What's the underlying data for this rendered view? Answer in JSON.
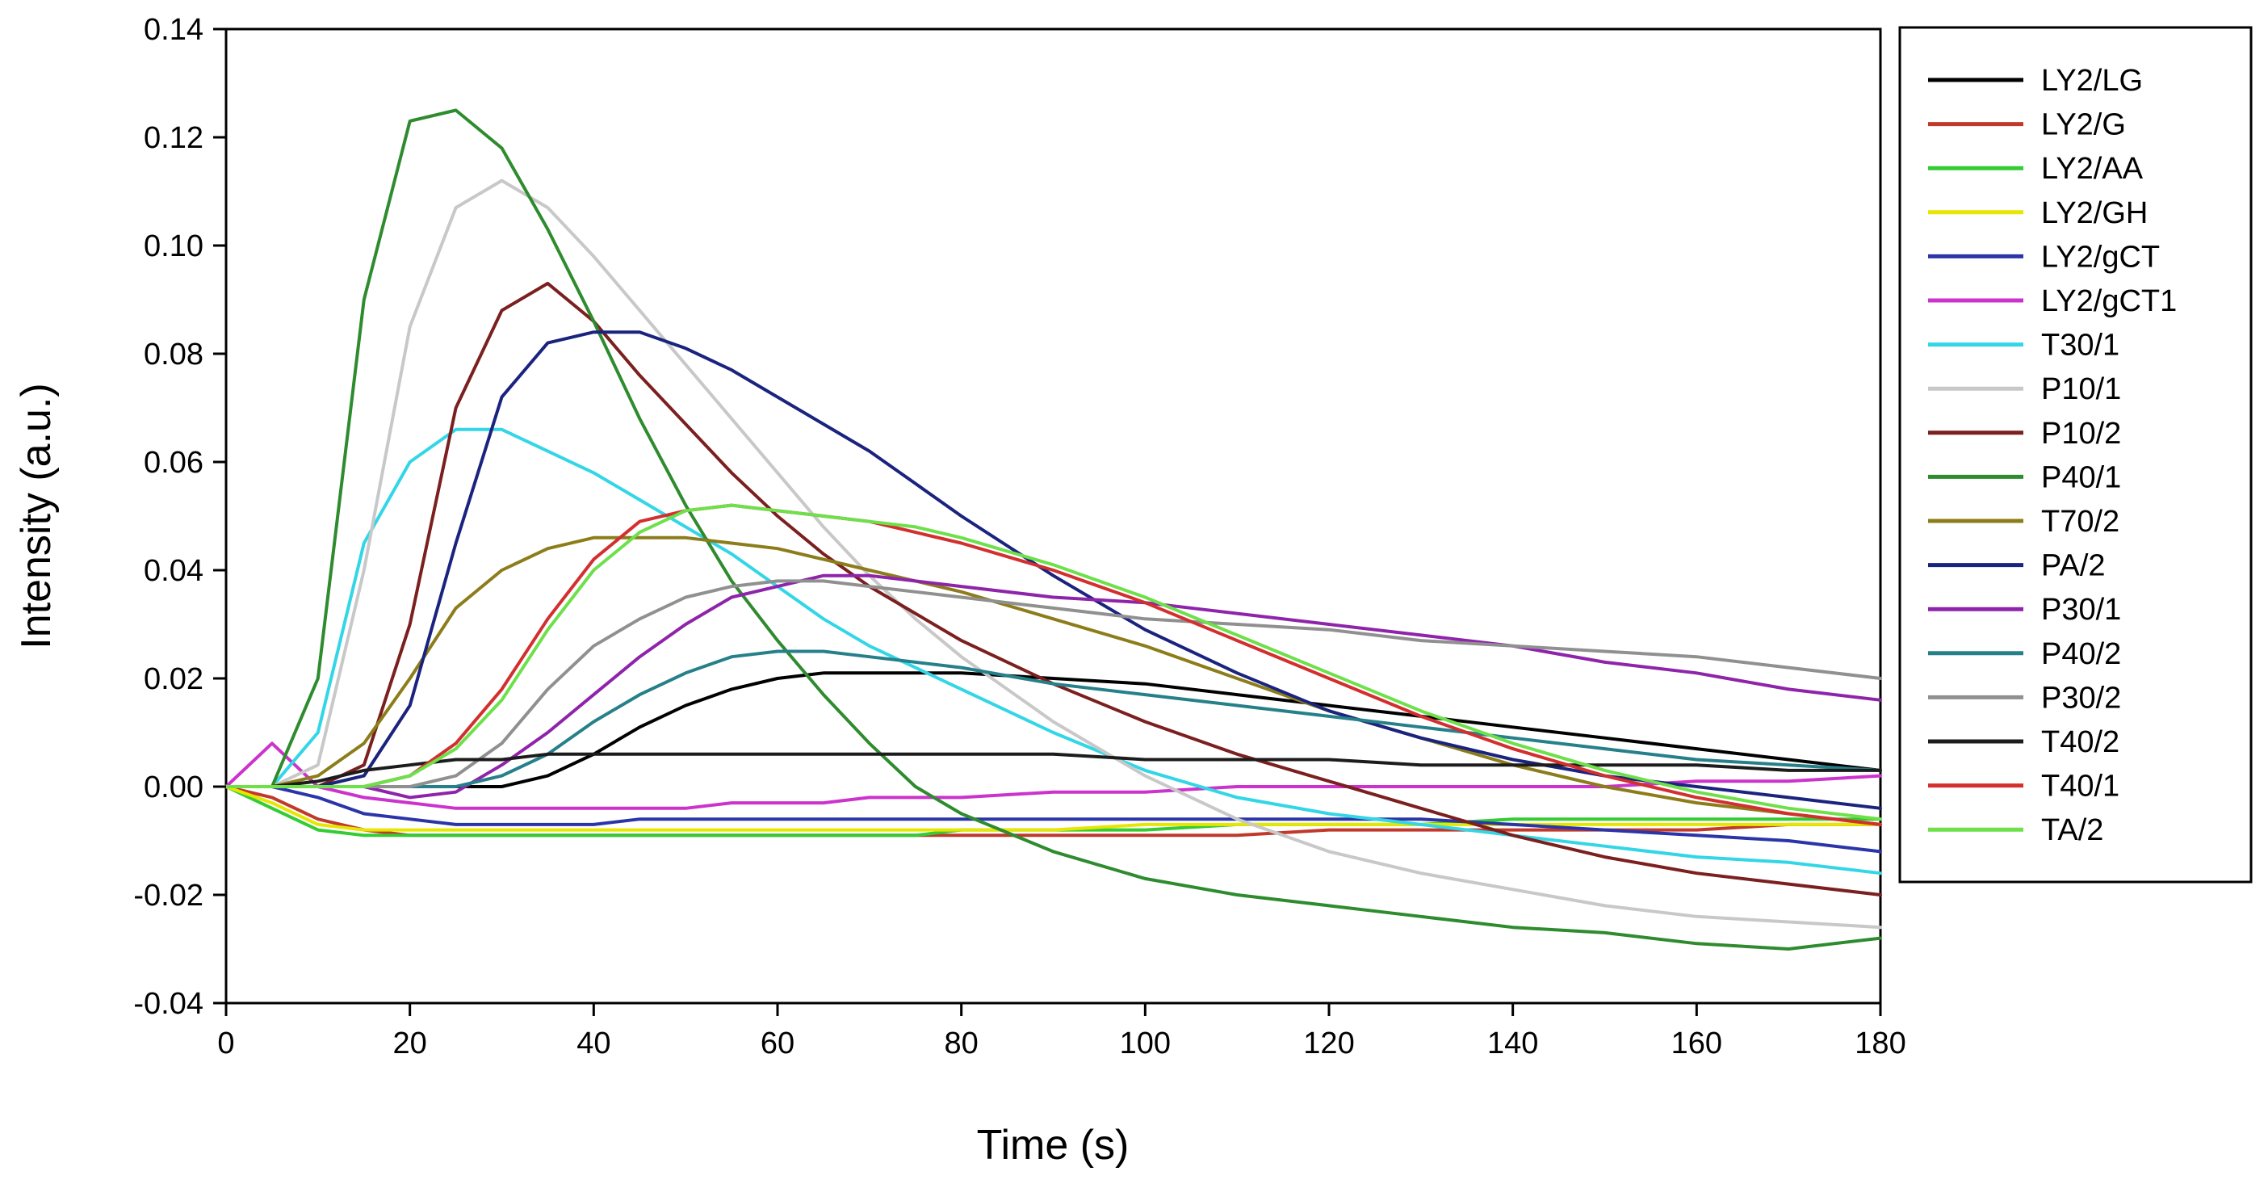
{
  "chart_data": {
    "type": "line",
    "title": "",
    "xlabel": "Time (s)",
    "ylabel": "Intensity (a.u.)",
    "xlim": [
      0,
      180
    ],
    "ylim": [
      -0.04,
      0.14
    ],
    "grid": false,
    "legend_position": "right",
    "x_ticks": [
      0,
      20,
      40,
      60,
      80,
      100,
      120,
      140,
      160,
      180
    ],
    "x_tick_labels": [
      "0",
      "20",
      "40",
      "60",
      "80",
      "100",
      "120",
      "140",
      "160",
      "180"
    ],
    "y_ticks": [
      -0.04,
      -0.02,
      0.0,
      0.02,
      0.04,
      0.06,
      0.08,
      0.1,
      0.12,
      0.14
    ],
    "y_tick_labels": [
      "-0.04",
      "-0.02",
      "0.00",
      "0.02",
      "0.04",
      "0.06",
      "0.08",
      "0.10",
      "0.12",
      "0.14"
    ],
    "x": [
      0,
      5,
      10,
      15,
      20,
      25,
      30,
      35,
      40,
      45,
      50,
      55,
      60,
      65,
      70,
      75,
      80,
      90,
      100,
      110,
      120,
      130,
      140,
      150,
      160,
      170,
      180
    ],
    "series": [
      {
        "name": "LY2/LG",
        "color": "#000000",
        "values": [
          0.0,
          0.0,
          0.0,
          0.0,
          0.0,
          0.0,
          0.0,
          0.002,
          0.006,
          0.011,
          0.015,
          0.018,
          0.02,
          0.021,
          0.021,
          0.021,
          0.021,
          0.02,
          0.019,
          0.017,
          0.015,
          0.013,
          0.011,
          0.009,
          0.007,
          0.005,
          0.003
        ]
      },
      {
        "name": "LY2/G",
        "color": "#c0392b",
        "values": [
          0.0,
          -0.002,
          -0.006,
          -0.008,
          -0.009,
          -0.009,
          -0.009,
          -0.009,
          -0.009,
          -0.009,
          -0.009,
          -0.009,
          -0.009,
          -0.009,
          -0.009,
          -0.009,
          -0.009,
          -0.009,
          -0.009,
          -0.009,
          -0.008,
          -0.008,
          -0.008,
          -0.008,
          -0.008,
          -0.007,
          -0.007
        ]
      },
      {
        "name": "LY2/AA",
        "color": "#33cc33",
        "values": [
          0.0,
          -0.004,
          -0.008,
          -0.009,
          -0.009,
          -0.009,
          -0.009,
          -0.009,
          -0.009,
          -0.009,
          -0.009,
          -0.009,
          -0.009,
          -0.009,
          -0.009,
          -0.009,
          -0.008,
          -0.008,
          -0.008,
          -0.007,
          -0.007,
          -0.007,
          -0.006,
          -0.006,
          -0.006,
          -0.006,
          -0.006
        ]
      },
      {
        "name": "LY2/GH",
        "color": "#e6e600",
        "values": [
          0.0,
          -0.003,
          -0.007,
          -0.008,
          -0.008,
          -0.008,
          -0.008,
          -0.008,
          -0.008,
          -0.008,
          -0.008,
          -0.008,
          -0.008,
          -0.008,
          -0.008,
          -0.008,
          -0.008,
          -0.008,
          -0.007,
          -0.007,
          -0.007,
          -0.007,
          -0.007,
          -0.007,
          -0.007,
          -0.007,
          -0.007
        ]
      },
      {
        "name": "LY2/gCT",
        "color": "#2b35a8",
        "values": [
          0.0,
          0.0,
          -0.002,
          -0.005,
          -0.006,
          -0.007,
          -0.007,
          -0.007,
          -0.007,
          -0.006,
          -0.006,
          -0.006,
          -0.006,
          -0.006,
          -0.006,
          -0.006,
          -0.006,
          -0.006,
          -0.006,
          -0.006,
          -0.006,
          -0.006,
          -0.007,
          -0.008,
          -0.009,
          -0.01,
          -0.012
        ]
      },
      {
        "name": "LY2/gCT1",
        "color": "#cc33cc",
        "values": [
          0.0,
          0.008,
          0.0,
          -0.002,
          -0.003,
          -0.004,
          -0.004,
          -0.004,
          -0.004,
          -0.004,
          -0.004,
          -0.003,
          -0.003,
          -0.003,
          -0.002,
          -0.002,
          -0.002,
          -0.001,
          -0.001,
          0.0,
          0.0,
          0.0,
          0.0,
          0.0,
          0.001,
          0.001,
          0.002
        ]
      },
      {
        "name": "T30/1",
        "color": "#33d6e6",
        "values": [
          0.0,
          0.0,
          0.01,
          0.045,
          0.06,
          0.066,
          0.066,
          0.062,
          0.058,
          0.053,
          0.048,
          0.043,
          0.037,
          0.031,
          0.026,
          0.022,
          0.018,
          0.01,
          0.003,
          -0.002,
          -0.005,
          -0.007,
          -0.009,
          -0.011,
          -0.013,
          -0.014,
          -0.016
        ]
      },
      {
        "name": "P10/1",
        "color": "#c8c8c8",
        "values": [
          0.0,
          0.0,
          0.004,
          0.04,
          0.085,
          0.107,
          0.112,
          0.107,
          0.098,
          0.088,
          0.078,
          0.068,
          0.058,
          0.048,
          0.039,
          0.031,
          0.024,
          0.012,
          0.002,
          -0.006,
          -0.012,
          -0.016,
          -0.019,
          -0.022,
          -0.024,
          -0.025,
          -0.026
        ]
      },
      {
        "name": "P10/2",
        "color": "#7b1f1f",
        "values": [
          0.0,
          0.0,
          0.0,
          0.004,
          0.03,
          0.07,
          0.088,
          0.093,
          0.086,
          0.076,
          0.067,
          0.058,
          0.05,
          0.043,
          0.037,
          0.032,
          0.027,
          0.019,
          0.012,
          0.006,
          0.001,
          -0.004,
          -0.009,
          -0.013,
          -0.016,
          -0.018,
          -0.02
        ]
      },
      {
        "name": "P40/1",
        "color": "#2e8b2e",
        "values": [
          0.0,
          0.0,
          0.02,
          0.09,
          0.123,
          0.125,
          0.118,
          0.103,
          0.086,
          0.068,
          0.052,
          0.038,
          0.027,
          0.017,
          0.008,
          0.0,
          -0.005,
          -0.012,
          -0.017,
          -0.02,
          -0.022,
          -0.024,
          -0.026,
          -0.027,
          -0.029,
          -0.03,
          -0.028
        ]
      },
      {
        "name": "T70/2",
        "color": "#8c7d1a",
        "values": [
          0.0,
          0.0,
          0.002,
          0.008,
          0.02,
          0.033,
          0.04,
          0.044,
          0.046,
          0.046,
          0.046,
          0.045,
          0.044,
          0.042,
          0.04,
          0.038,
          0.036,
          0.031,
          0.026,
          0.02,
          0.014,
          0.009,
          0.004,
          0.0,
          -0.003,
          -0.005,
          -0.007
        ]
      },
      {
        "name": "PA/2",
        "color": "#1a237e",
        "values": [
          0.0,
          0.0,
          0.0,
          0.002,
          0.015,
          0.045,
          0.072,
          0.082,
          0.084,
          0.084,
          0.081,
          0.077,
          0.072,
          0.067,
          0.062,
          0.056,
          0.05,
          0.039,
          0.029,
          0.021,
          0.014,
          0.009,
          0.005,
          0.002,
          0.0,
          -0.002,
          -0.004
        ]
      },
      {
        "name": "P30/1",
        "color": "#8e24aa",
        "values": [
          0.0,
          0.0,
          0.0,
          0.0,
          -0.002,
          -0.001,
          0.004,
          0.01,
          0.017,
          0.024,
          0.03,
          0.035,
          0.037,
          0.039,
          0.039,
          0.038,
          0.037,
          0.035,
          0.034,
          0.032,
          0.03,
          0.028,
          0.026,
          0.023,
          0.021,
          0.018,
          0.016
        ]
      },
      {
        "name": "P40/2",
        "color": "#26808a",
        "values": [
          0.0,
          0.0,
          0.0,
          0.0,
          0.0,
          0.0,
          0.002,
          0.006,
          0.012,
          0.017,
          0.021,
          0.024,
          0.025,
          0.025,
          0.024,
          0.023,
          0.022,
          0.019,
          0.017,
          0.015,
          0.013,
          0.011,
          0.009,
          0.007,
          0.005,
          0.004,
          0.003
        ]
      },
      {
        "name": "P30/2",
        "color": "#909090",
        "values": [
          0.0,
          0.0,
          0.0,
          0.0,
          0.0,
          0.002,
          0.008,
          0.018,
          0.026,
          0.031,
          0.035,
          0.037,
          0.038,
          0.038,
          0.037,
          0.036,
          0.035,
          0.033,
          0.031,
          0.03,
          0.029,
          0.027,
          0.026,
          0.025,
          0.024,
          0.022,
          0.02
        ]
      },
      {
        "name": "T40/2",
        "color": "#1c1c1c",
        "values": [
          0.0,
          0.0,
          0.001,
          0.003,
          0.004,
          0.005,
          0.005,
          0.006,
          0.006,
          0.006,
          0.006,
          0.006,
          0.006,
          0.006,
          0.006,
          0.006,
          0.006,
          0.006,
          0.005,
          0.005,
          0.005,
          0.004,
          0.004,
          0.004,
          0.004,
          0.003,
          0.003
        ]
      },
      {
        "name": "T40/1",
        "color": "#d32f2f",
        "values": [
          0.0,
          0.0,
          0.0,
          0.0,
          0.002,
          0.008,
          0.018,
          0.031,
          0.042,
          0.049,
          0.051,
          0.052,
          0.051,
          0.05,
          0.049,
          0.047,
          0.045,
          0.04,
          0.034,
          0.027,
          0.02,
          0.013,
          0.007,
          0.002,
          -0.002,
          -0.005,
          -0.007
        ]
      },
      {
        "name": "TA/2",
        "color": "#6de04a",
        "values": [
          0.0,
          0.0,
          0.0,
          0.0,
          0.002,
          0.007,
          0.016,
          0.029,
          0.04,
          0.047,
          0.051,
          0.052,
          0.051,
          0.05,
          0.049,
          0.048,
          0.046,
          0.041,
          0.035,
          0.028,
          0.021,
          0.014,
          0.008,
          0.003,
          -0.001,
          -0.004,
          -0.006
        ]
      }
    ]
  }
}
